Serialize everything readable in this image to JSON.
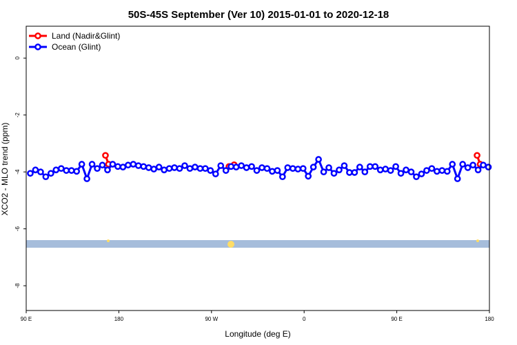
{
  "chart_data": {
    "type": "line",
    "title": "50S-45S September (Ver 10)   2015-01-01 to 2020-12-18",
    "xlabel": "Longitude (deg E)",
    "ylabel": "XCO2 - MLO trend (ppm)",
    "xlim": [
      90,
      540
    ],
    "ylim": [
      -8.87,
      1.12
    ],
    "xticks": [
      {
        "value": 90,
        "label": "90 E"
      },
      180,
      {
        "value": 270,
        "label": "90 W"
      },
      {
        "value": 360,
        "label": "0"
      },
      {
        "value": 450,
        "label": "90 E"
      },
      {
        "value": 540,
        "label": "180"
      }
    ],
    "yticks": [
      0,
      -2,
      -4,
      -6,
      -8
    ],
    "legend": "top-left",
    "series": [
      {
        "name": "Land (Nadir&Glint)",
        "color": "#ff0000",
        "x": [
          167,
          170,
          null,
          287,
          292,
          null,
          528,
          531
        ],
        "values": [
          -3.42,
          -3.73,
          null,
          -3.81,
          -3.75,
          null,
          -3.42,
          -3.73
        ]
      },
      {
        "name": "Ocean (Glint)",
        "color": "#0000ff",
        "x": [
          94,
          99,
          104,
          109,
          114,
          119,
          124,
          129,
          134,
          139,
          144,
          149,
          154,
          159,
          164,
          169,
          174,
          179,
          184,
          189,
          194,
          199,
          204,
          209,
          214,
          219,
          224,
          229,
          234,
          239,
          244,
          249,
          254,
          259,
          264,
          269,
          274,
          279,
          284,
          289,
          294,
          299,
          304,
          309,
          314,
          319,
          324,
          329,
          334,
          339,
          344,
          349,
          354,
          359,
          364,
          369,
          374,
          379,
          384,
          389,
          394,
          399,
          404,
          409,
          414,
          419,
          424,
          429,
          434,
          439,
          444,
          449,
          454,
          459,
          464,
          469,
          474,
          479,
          484,
          489,
          494,
          499,
          504,
          509,
          514,
          519,
          524,
          529,
          534,
          539
        ],
        "values": [
          -4.05,
          -3.93,
          -4.0,
          -4.17,
          -4.05,
          -3.93,
          -3.88,
          -3.95,
          -3.95,
          -3.98,
          -3.73,
          -4.24,
          -3.73,
          -3.88,
          -3.76,
          -3.93,
          -3.73,
          -3.81,
          -3.83,
          -3.76,
          -3.73,
          -3.78,
          -3.81,
          -3.85,
          -3.9,
          -3.83,
          -3.93,
          -3.88,
          -3.85,
          -3.88,
          -3.78,
          -3.88,
          -3.83,
          -3.88,
          -3.88,
          -3.95,
          -4.07,
          -3.78,
          -3.95,
          -3.81,
          -3.83,
          -3.78,
          -3.85,
          -3.81,
          -3.95,
          -3.85,
          -3.88,
          -3.98,
          -3.95,
          -4.17,
          -3.85,
          -3.88,
          -3.9,
          -3.88,
          -4.15,
          -3.83,
          -3.56,
          -4.0,
          -3.85,
          -4.05,
          -3.93,
          -3.78,
          -4.02,
          -4.02,
          -3.83,
          -4.0,
          -3.81,
          -3.81,
          -3.93,
          -3.9,
          -3.95,
          -3.81,
          -4.05,
          -3.93,
          -4.0,
          -4.17,
          -4.07,
          -3.95,
          -3.88,
          -3.98,
          -3.95,
          -3.98,
          -3.73,
          -4.24,
          -3.73,
          -3.85,
          -3.76,
          -3.93,
          -3.76,
          -3.83
        ]
      }
    ]
  }
}
